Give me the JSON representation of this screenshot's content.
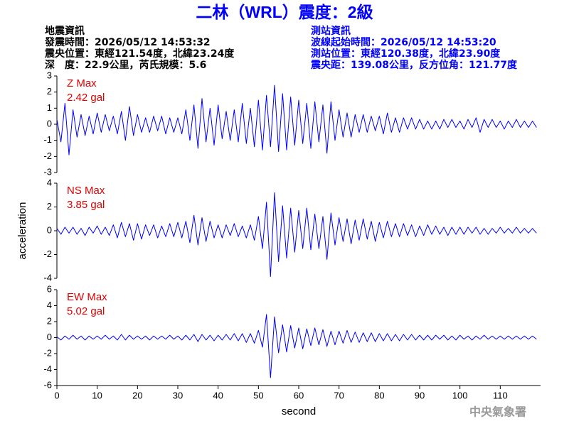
{
  "header": {
    "title": "二林（WRL）震度：2級",
    "event_heading": "地震資訊",
    "event_lines": [
      "發震時間：2026/05/12 14:53:32",
      "震央位置：東經121.54度，北緯23.24度",
      "深　度：22.9公里，芮氏規模：5.6"
    ],
    "station_heading": "測站資訊",
    "station_lines": [
      "波線起始時間：2026/05/12 14:53:20",
      "測站位置：東經120.38度，北緯23.90度",
      "震央距：139.08公里，反方位角：121.77度"
    ],
    "footer": "中央氣象署"
  },
  "chart_data": [
    {
      "type": "line",
      "annotation_title": "Z Max",
      "annotation_value": "2.42 gal",
      "color": "#0000ff",
      "xlim": [
        0,
        120
      ],
      "ylim": [
        -3,
        3
      ],
      "yticks": [
        -3,
        -2,
        -1,
        0,
        1,
        2,
        3
      ],
      "x": [
        0,
        1,
        2,
        3,
        4,
        5,
        6,
        7,
        8,
        9,
        10,
        11,
        12,
        13,
        14,
        15,
        16,
        17,
        18,
        19,
        20,
        21,
        22,
        23,
        24,
        25,
        26,
        27,
        28,
        29,
        30,
        31,
        32,
        33,
        34,
        35,
        36,
        37,
        38,
        39,
        40,
        41,
        42,
        43,
        44,
        45,
        46,
        47,
        48,
        49,
        50,
        51,
        52,
        53,
        54,
        55,
        56,
        57,
        58,
        59,
        60,
        61,
        62,
        63,
        64,
        65,
        66,
        67,
        68,
        69,
        70,
        71,
        72,
        73,
        74,
        75,
        76,
        77,
        78,
        79,
        80,
        81,
        82,
        83,
        84,
        85,
        86,
        87,
        88,
        89,
        90,
        91,
        92,
        93,
        94,
        95,
        96,
        97,
        98,
        99,
        100,
        101,
        102,
        103,
        104,
        105,
        106,
        107,
        108,
        109,
        110,
        111,
        112,
        113,
        114,
        115,
        116,
        117,
        118,
        119
      ],
      "values": [
        0.3,
        -1.1,
        1.3,
        -1.9,
        0.9,
        -0.8,
        0.6,
        -0.7,
        0.5,
        -0.6,
        0.7,
        -0.5,
        0.6,
        -0.4,
        0.5,
        -0.6,
        0.8,
        -1.0,
        1.1,
        -0.7,
        0.6,
        -0.5,
        0.4,
        -0.5,
        0.5,
        -0.4,
        0.5,
        -0.6,
        0.4,
        -0.5,
        0.4,
        -0.6,
        0.9,
        -1.0,
        1.2,
        -1.5,
        1.6,
        -1.1,
        1.0,
        -1.3,
        1.2,
        -0.9,
        0.8,
        -1.0,
        0.9,
        -1.1,
        1.3,
        -1.2,
        1.0,
        -1.4,
        1.5,
        -1.6,
        1.8,
        -1.4,
        2.42,
        -1.7,
        1.9,
        -1.6,
        1.7,
        -1.3,
        1.5,
        -1.2,
        1.3,
        -1.5,
        1.4,
        -1.1,
        1.2,
        -1.8,
        1.4,
        -1.0,
        0.9,
        -0.8,
        0.7,
        -0.8,
        0.6,
        -0.5,
        0.6,
        -0.5,
        0.5,
        -0.4,
        0.5,
        -0.6,
        0.7,
        -0.5,
        0.4,
        -0.5,
        0.4,
        -0.3,
        0.4,
        -0.3,
        0.3,
        -0.3,
        0.2,
        -0.3,
        0.2,
        -0.3,
        0.3,
        -0.2,
        0.3,
        -0.2,
        0.2,
        -0.3,
        0.3,
        -0.2,
        0.4,
        -0.5,
        0.3,
        -0.2,
        0.3,
        -0.2,
        0.2,
        -0.3,
        0.2,
        -0.2,
        0.3,
        -0.2,
        0.2,
        -0.2,
        0.2,
        -0.2
      ]
    },
    {
      "type": "line",
      "annotation_title": "NS Max",
      "annotation_value": "3.85 gal",
      "color": "#0000ff",
      "ylabel": "acceleration",
      "xlim": [
        0,
        120
      ],
      "ylim": [
        -4,
        4
      ],
      "yticks": [
        -4,
        -2,
        0,
        2,
        4
      ],
      "x": [
        0,
        1,
        2,
        3,
        4,
        5,
        6,
        7,
        8,
        9,
        10,
        11,
        12,
        13,
        14,
        15,
        16,
        17,
        18,
        19,
        20,
        21,
        22,
        23,
        24,
        25,
        26,
        27,
        28,
        29,
        30,
        31,
        32,
        33,
        34,
        35,
        36,
        37,
        38,
        39,
        40,
        41,
        42,
        43,
        44,
        45,
        46,
        47,
        48,
        49,
        50,
        51,
        52,
        53,
        54,
        55,
        56,
        57,
        58,
        59,
        60,
        61,
        62,
        63,
        64,
        65,
        66,
        67,
        68,
        69,
        70,
        71,
        72,
        73,
        74,
        75,
        76,
        77,
        78,
        79,
        80,
        81,
        82,
        83,
        84,
        85,
        86,
        87,
        88,
        89,
        90,
        91,
        92,
        93,
        94,
        95,
        96,
        97,
        98,
        99,
        100,
        101,
        102,
        103,
        104,
        105,
        106,
        107,
        108,
        109,
        110,
        111,
        112,
        113,
        114,
        115,
        116,
        117,
        118,
        119
      ],
      "values": [
        0.2,
        -0.3,
        0.3,
        -0.2,
        0.3,
        -0.3,
        0.2,
        -0.4,
        0.3,
        -0.2,
        0.4,
        -0.3,
        0.3,
        -0.4,
        0.5,
        -0.6,
        0.7,
        -0.5,
        0.6,
        -0.8,
        0.6,
        -0.7,
        0.5,
        -0.4,
        0.5,
        -0.6,
        0.4,
        -0.5,
        0.6,
        -0.5,
        0.7,
        -0.6,
        0.8,
        -1.0,
        1.3,
        -1.2,
        1.1,
        -0.9,
        0.8,
        -0.6,
        0.5,
        -0.6,
        0.5,
        -0.4,
        0.6,
        -0.5,
        0.4,
        -0.6,
        0.5,
        -0.8,
        1.2,
        -1.5,
        2.4,
        -3.85,
        3.2,
        -2.6,
        2.1,
        -2.3,
        1.9,
        -1.8,
        1.7,
        -1.5,
        1.9,
        -1.6,
        1.4,
        -1.5,
        1.2,
        -2.4,
        1.5,
        -1.2,
        1.1,
        -0.9,
        1.0,
        -1.1,
        0.9,
        -0.8,
        1.0,
        -0.7,
        0.8,
        -0.9,
        0.7,
        -0.6,
        0.8,
        -0.5,
        0.6,
        -0.5,
        0.6,
        -0.4,
        0.5,
        -0.5,
        0.4,
        -0.4,
        0.5,
        -0.3,
        0.4,
        -0.3,
        0.3,
        -0.4,
        0.3,
        -0.3,
        0.3,
        -0.3,
        0.3,
        -0.2,
        0.3,
        -0.3,
        0.2,
        -0.3,
        0.2,
        -0.2,
        0.3,
        -0.2,
        0.2,
        -0.2,
        0.3,
        -0.2,
        0.2,
        -0.2,
        0.2,
        -0.2
      ]
    },
    {
      "type": "line",
      "annotation_title": "EW Max",
      "annotation_value": "5.02 gal",
      "color": "#0000ff",
      "xlabel": "second",
      "xlim": [
        0,
        120
      ],
      "xticks": [
        0,
        10,
        20,
        30,
        40,
        50,
        60,
        70,
        80,
        90,
        100,
        110
      ],
      "ylim": [
        -6,
        6
      ],
      "yticks": [
        -6,
        -4,
        -2,
        0,
        2,
        4,
        6
      ],
      "x": [
        0,
        1,
        2,
        3,
        4,
        5,
        6,
        7,
        8,
        9,
        10,
        11,
        12,
        13,
        14,
        15,
        16,
        17,
        18,
        19,
        20,
        21,
        22,
        23,
        24,
        25,
        26,
        27,
        28,
        29,
        30,
        31,
        32,
        33,
        34,
        35,
        36,
        37,
        38,
        39,
        40,
        41,
        42,
        43,
        44,
        45,
        46,
        47,
        48,
        49,
        50,
        51,
        52,
        53,
        54,
        55,
        56,
        57,
        58,
        59,
        60,
        61,
        62,
        63,
        64,
        65,
        66,
        67,
        68,
        69,
        70,
        71,
        72,
        73,
        74,
        75,
        76,
        77,
        78,
        79,
        80,
        81,
        82,
        83,
        84,
        85,
        86,
        87,
        88,
        89,
        90,
        91,
        92,
        93,
        94,
        95,
        96,
        97,
        98,
        99,
        100,
        101,
        102,
        103,
        104,
        105,
        106,
        107,
        108,
        109,
        110,
        111,
        112,
        113,
        114,
        115,
        116,
        117,
        118,
        119
      ],
      "values": [
        0.1,
        -0.3,
        0.2,
        -0.2,
        0.3,
        -0.2,
        0.2,
        -0.3,
        0.2,
        -0.2,
        0.2,
        -0.2,
        0.3,
        -0.2,
        0.2,
        -0.3,
        0.4,
        -0.3,
        0.3,
        -0.2,
        0.2,
        -0.2,
        0.2,
        -0.3,
        0.2,
        -0.2,
        0.2,
        -0.2,
        0.3,
        -0.2,
        0.2,
        -0.3,
        0.3,
        -0.3,
        0.4,
        -0.5,
        0.4,
        -0.3,
        0.3,
        -0.4,
        0.3,
        -0.3,
        0.4,
        -0.3,
        0.5,
        -0.4,
        0.5,
        -0.6,
        0.5,
        -0.7,
        0.9,
        -1.2,
        2.9,
        -5.02,
        2.6,
        -1.9,
        1.6,
        -1.8,
        1.5,
        -1.3,
        1.2,
        -1.4,
        1.1,
        -1.0,
        1.2,
        -0.9,
        1.0,
        -1.1,
        0.8,
        -0.9,
        0.8,
        -0.7,
        0.9,
        -0.6,
        0.7,
        -0.6,
        0.6,
        -0.5,
        0.6,
        -0.5,
        0.5,
        -0.4,
        0.5,
        -0.4,
        0.4,
        -0.4,
        0.4,
        -0.3,
        0.4,
        -0.3,
        0.3,
        -0.3,
        0.3,
        -0.3,
        0.3,
        -0.2,
        0.3,
        -0.3,
        0.2,
        -0.3,
        0.3,
        -0.2,
        0.2,
        -0.3,
        0.2,
        -0.2,
        0.3,
        -0.2,
        0.2,
        -0.2,
        0.2,
        -0.2,
        0.2,
        -0.2,
        0.2,
        -0.2,
        0.2,
        -0.2,
        0.2,
        -0.2
      ]
    }
  ]
}
